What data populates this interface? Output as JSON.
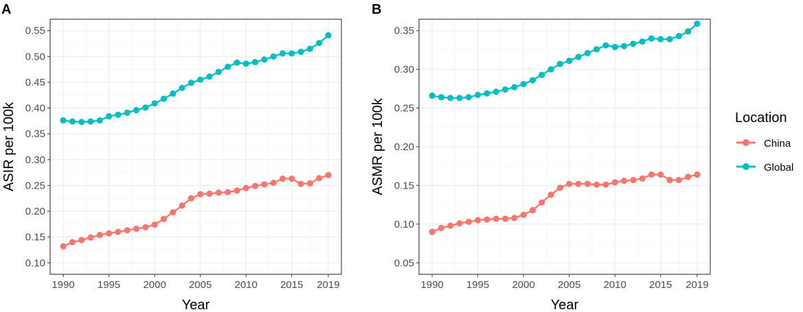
{
  "legend": {
    "title": "Location",
    "entries": [
      {
        "label": "China",
        "color": "#F8766D"
      },
      {
        "label": "Global",
        "color": "#00BFC4"
      }
    ]
  },
  "chart_data": [
    {
      "type": "line",
      "panel_label": "A",
      "title": "",
      "xlabel": "Year",
      "ylabel": "ASIR per 100k",
      "xlim": [
        1990,
        2019
      ],
      "ylim": [
        0.1,
        0.55
      ],
      "xticks": [
        1990,
        1995,
        2000,
        2005,
        2010,
        2015,
        2019
      ],
      "yticks": [
        0.1,
        0.15,
        0.2,
        0.25,
        0.3,
        0.35,
        0.4,
        0.45,
        0.5,
        0.55
      ],
      "ytick_labels": [
        "0.10",
        "0.15",
        "0.20",
        "0.25",
        "0.30",
        "0.35",
        "0.40",
        "0.45",
        "0.50",
        "0.55"
      ],
      "grid": true,
      "x": [
        1990,
        1991,
        1992,
        1993,
        1994,
        1995,
        1996,
        1997,
        1998,
        1999,
        2000,
        2001,
        2002,
        2003,
        2004,
        2005,
        2006,
        2007,
        2008,
        2009,
        2010,
        2011,
        2012,
        2013,
        2014,
        2015,
        2016,
        2017,
        2018,
        2019
      ],
      "series": [
        {
          "name": "China",
          "color": "#F8766D",
          "values": [
            0.132,
            0.14,
            0.144,
            0.149,
            0.154,
            0.157,
            0.16,
            0.163,
            0.166,
            0.169,
            0.174,
            0.185,
            0.198,
            0.211,
            0.225,
            0.233,
            0.234,
            0.236,
            0.237,
            0.24,
            0.245,
            0.249,
            0.252,
            0.255,
            0.263,
            0.263,
            0.253,
            0.254,
            0.264,
            0.27
          ]
        },
        {
          "name": "Global",
          "color": "#00BFC4",
          "values": [
            0.376,
            0.374,
            0.373,
            0.374,
            0.376,
            0.384,
            0.387,
            0.391,
            0.396,
            0.401,
            0.409,
            0.418,
            0.428,
            0.439,
            0.449,
            0.455,
            0.461,
            0.47,
            0.48,
            0.488,
            0.486,
            0.489,
            0.494,
            0.5,
            0.506,
            0.506,
            0.509,
            0.515,
            0.526,
            0.541
          ]
        }
      ]
    },
    {
      "type": "line",
      "panel_label": "B",
      "title": "",
      "xlabel": "Year",
      "ylabel": "ASMR per 100k",
      "xlim": [
        1990,
        2019
      ],
      "ylim": [
        0.05,
        0.35
      ],
      "xticks": [
        1990,
        1995,
        2000,
        2005,
        2010,
        2015,
        2019
      ],
      "yticks": [
        0.05,
        0.1,
        0.15,
        0.2,
        0.25,
        0.3,
        0.35
      ],
      "ytick_labels": [
        "0.05",
        "0.10",
        "0.15",
        "0.20",
        "0.25",
        "0.30",
        "0.35"
      ],
      "grid": true,
      "x": [
        1990,
        1991,
        1992,
        1993,
        1994,
        1995,
        1996,
        1997,
        1998,
        1999,
        2000,
        2001,
        2002,
        2003,
        2004,
        2005,
        2006,
        2007,
        2008,
        2009,
        2010,
        2011,
        2012,
        2013,
        2014,
        2015,
        2016,
        2017,
        2018,
        2019
      ],
      "series": [
        {
          "name": "China",
          "color": "#F8766D",
          "values": [
            0.09,
            0.095,
            0.098,
            0.101,
            0.103,
            0.105,
            0.106,
            0.107,
            0.107,
            0.108,
            0.112,
            0.118,
            0.128,
            0.138,
            0.147,
            0.152,
            0.152,
            0.152,
            0.151,
            0.151,
            0.154,
            0.156,
            0.157,
            0.159,
            0.164,
            0.164,
            0.157,
            0.157,
            0.161,
            0.164
          ]
        },
        {
          "name": "Global",
          "color": "#00BFC4",
          "values": [
            0.266,
            0.264,
            0.263,
            0.263,
            0.264,
            0.267,
            0.269,
            0.271,
            0.274,
            0.277,
            0.281,
            0.286,
            0.293,
            0.3,
            0.307,
            0.311,
            0.316,
            0.321,
            0.326,
            0.331,
            0.329,
            0.33,
            0.333,
            0.336,
            0.34,
            0.339,
            0.339,
            0.343,
            0.349,
            0.359
          ]
        }
      ]
    }
  ]
}
